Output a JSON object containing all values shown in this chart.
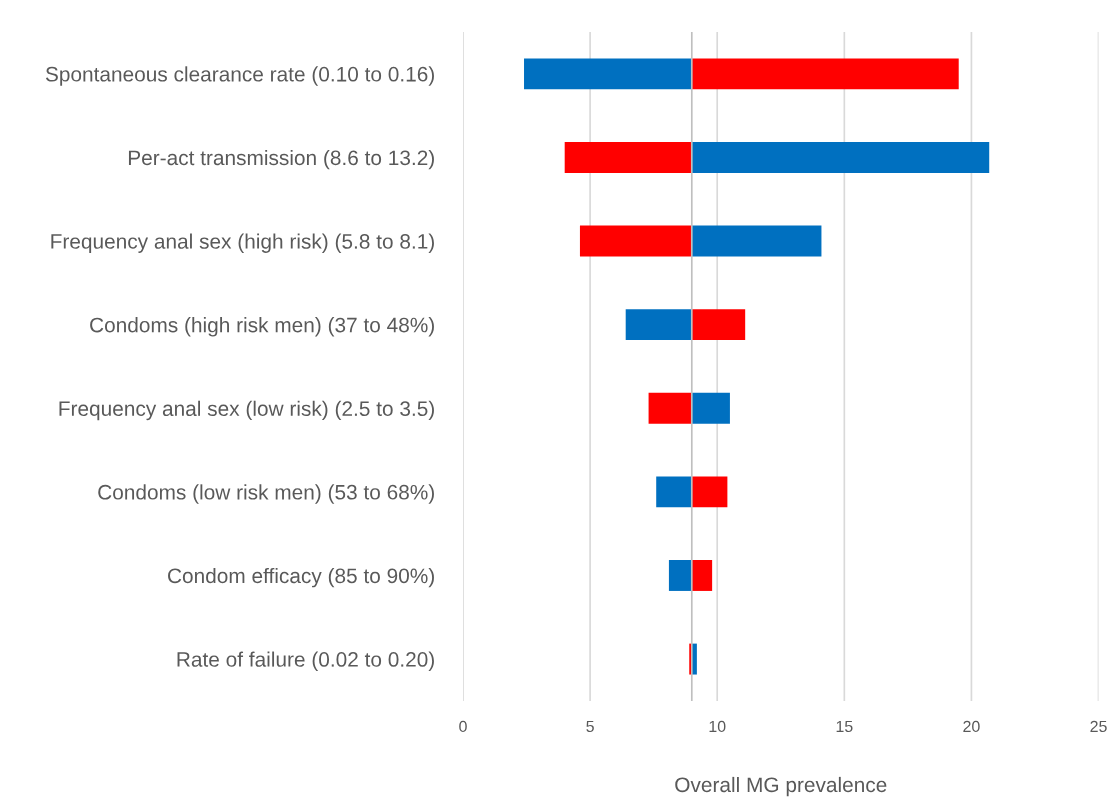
{
  "chart_data": {
    "type": "bar",
    "orientation": "horizontal",
    "xlabel": "Overall MG prevalence",
    "categories": [
      "Spontaneous clearance rate (0.10 to 0.16)",
      "Per-act transmission (8.6 to 13.2)",
      "Frequency anal sex (high risk) (5.8 to 8.1)",
      "Condoms (high risk men) (37 to 48%)",
      "Frequency anal sex (low risk) (2.5 to 3.5)",
      "Condoms (low risk men) (53 to 68%)",
      "Condom efficacy (85 to 90%)",
      "Rate of failure (0.02 to 0.20)"
    ],
    "series": [
      {
        "base": [
          2.4,
          4.0,
          4.6,
          6.4,
          7.3,
          7.6,
          8.1,
          8.9
        ],
        "values": [
          6.6,
          5.0,
          4.4,
          2.6,
          1.7,
          1.4,
          0.9,
          0.1
        ],
        "colors": [
          "#0070c0",
          "#ff0000",
          "#ff0000",
          "#0070c0",
          "#ff0000",
          "#0070c0",
          "#0070c0",
          "#ff0000"
        ]
      },
      {
        "base": [
          9,
          9,
          9,
          9,
          9,
          9,
          9,
          9
        ],
        "values": [
          10.5,
          11.7,
          5.1,
          2.1,
          1.5,
          1.4,
          0.8,
          0.2
        ],
        "colors": [
          "#ff0000",
          "#0070c0",
          "#0070c0",
          "#ff0000",
          "#0070c0",
          "#ff0000",
          "#ff0000",
          "#0070c0"
        ]
      }
    ],
    "xlim": [
      0,
      25
    ],
    "xticks": [
      0,
      5,
      10,
      15,
      20,
      25
    ],
    "grid": "x",
    "ref_lines": [
      {
        "axis": "x",
        "value": 9,
        "color": "#bfbfbf"
      }
    ]
  }
}
